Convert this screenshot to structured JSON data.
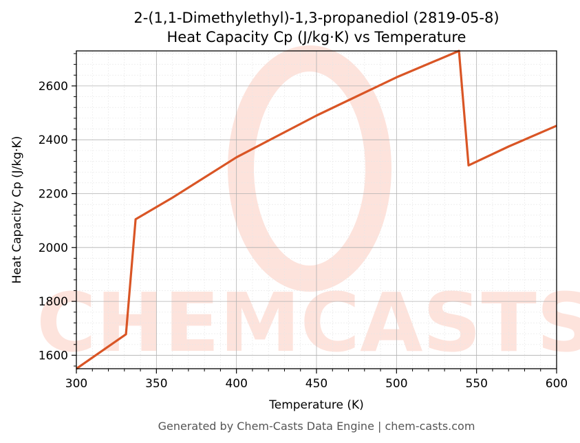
{
  "chart_data": {
    "type": "line",
    "title_line1": "2-(1,1-Dimethylethyl)-1,3-propanediol (2819-05-8)",
    "title_line2": "Heat Capacity Cp (J/kg·K) vs Temperature",
    "xlabel": "Temperature (K)",
    "ylabel": "Heat Capacity Cp (J/kg·K)",
    "xlim": [
      300,
      600
    ],
    "ylim": [
      1550,
      2730
    ],
    "xticks": [
      300,
      350,
      400,
      450,
      500,
      550,
      600
    ],
    "yticks": [
      1600,
      1800,
      2000,
      2200,
      2400,
      2600
    ],
    "grid": true,
    "legend": "none",
    "series": [
      {
        "color": "#d95525",
        "x": [
          300,
          331,
          337,
          360,
          400,
          450,
          500,
          539,
          545,
          570,
          600
        ],
        "y": [
          1550,
          1678,
          2105,
          2185,
          2335,
          2490,
          2632,
          2730,
          2305,
          2375,
          2452
        ]
      }
    ]
  },
  "watermark": {
    "text": "CHEMCASTS",
    "color": "#fde3dc"
  },
  "footer": "Generated by Chem-Casts Data Engine | chem-casts.com"
}
